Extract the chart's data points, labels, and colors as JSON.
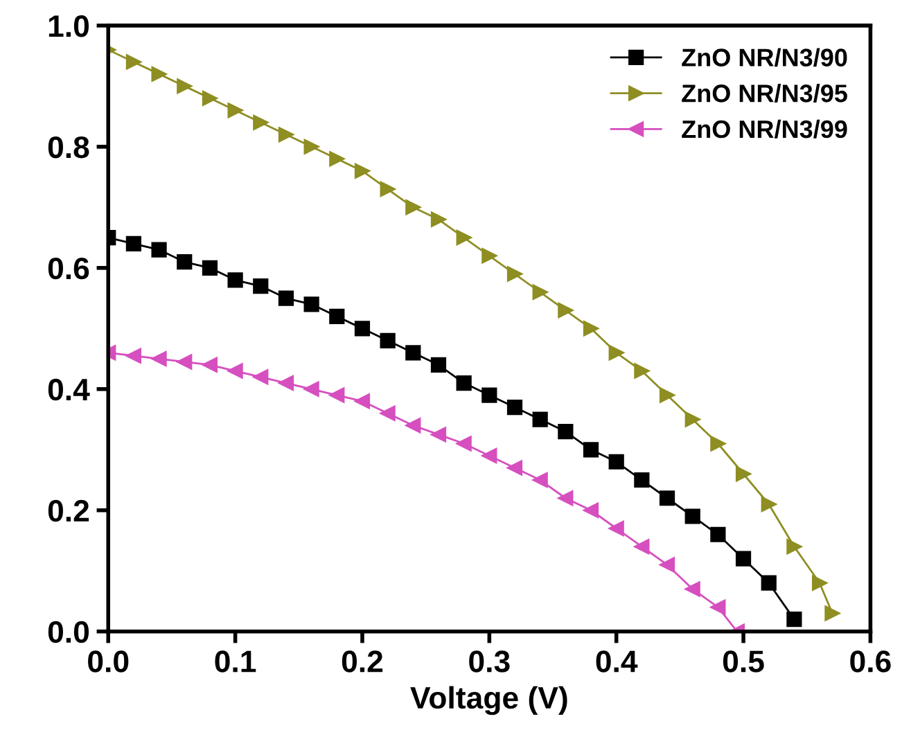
{
  "chart_data": {
    "type": "line",
    "xlabel": "Voltage (V)",
    "xlim": [
      0,
      0.6
    ],
    "ylim": [
      0,
      1.0
    ],
    "xticks": [
      {
        "value": 0,
        "label": "0.0"
      },
      0.1,
      0.2,
      0.3,
      0.4,
      0.5,
      0.6
    ],
    "yticks": [
      {
        "value": 0,
        "label": "0.0"
      },
      0.2,
      0.4,
      0.6,
      0.8,
      {
        "value": 1,
        "label": "1.0"
      }
    ],
    "grid": false,
    "legend": "top right",
    "line_style": "solid",
    "series": [
      {
        "name": "ZnO NR/N3/90",
        "color": "#000000",
        "marker": "square",
        "x": [
          0,
          0.02,
          0.04,
          0.06,
          0.08,
          0.1,
          0.12,
          0.14,
          0.16,
          0.18,
          0.2,
          0.22,
          0.24,
          0.26,
          0.28,
          0.3,
          0.32,
          0.34,
          0.36,
          0.38,
          0.4,
          0.42,
          0.44,
          0.46,
          0.48,
          0.5,
          0.52,
          0.54
        ],
        "values": [
          0.65,
          0.64,
          0.63,
          0.61,
          0.6,
          0.58,
          0.57,
          0.55,
          0.54,
          0.52,
          0.5,
          0.48,
          0.46,
          0.44,
          0.41,
          0.39,
          0.37,
          0.35,
          0.33,
          0.3,
          0.28,
          0.25,
          0.22,
          0.19,
          0.16,
          0.12,
          0.08,
          0.02
        ]
      },
      {
        "name": "ZnO NR/N3/95",
        "color": "#8e8e22",
        "marker": "triangle-right",
        "x": [
          0,
          0.02,
          0.04,
          0.06,
          0.08,
          0.1,
          0.12,
          0.14,
          0.16,
          0.18,
          0.2,
          0.22,
          0.24,
          0.26,
          0.28,
          0.3,
          0.32,
          0.34,
          0.36,
          0.38,
          0.4,
          0.42,
          0.44,
          0.46,
          0.48,
          0.5,
          0.52,
          0.54,
          0.56,
          0.57
        ],
        "values": [
          0.96,
          0.94,
          0.92,
          0.9,
          0.88,
          0.86,
          0.84,
          0.82,
          0.8,
          0.78,
          0.76,
          0.73,
          0.7,
          0.68,
          0.65,
          0.62,
          0.59,
          0.56,
          0.53,
          0.5,
          0.46,
          0.43,
          0.39,
          0.35,
          0.31,
          0.26,
          0.21,
          0.14,
          0.08,
          0.03
        ]
      },
      {
        "name": "ZnO NR/N3/99",
        "color": "#d64fbf",
        "marker": "triangle-left",
        "x": [
          0,
          0.02,
          0.04,
          0.06,
          0.08,
          0.1,
          0.12,
          0.14,
          0.16,
          0.18,
          0.2,
          0.22,
          0.24,
          0.26,
          0.28,
          0.3,
          0.32,
          0.34,
          0.36,
          0.38,
          0.4,
          0.42,
          0.44,
          0.46,
          0.48,
          0.495
        ],
        "values": [
          0.46,
          0.455,
          0.45,
          0.445,
          0.44,
          0.43,
          0.42,
          0.41,
          0.4,
          0.39,
          0.38,
          0.36,
          0.34,
          0.325,
          0.31,
          0.29,
          0.27,
          0.25,
          0.22,
          0.2,
          0.17,
          0.14,
          0.11,
          0.07,
          0.04,
          0.0
        ]
      }
    ]
  }
}
